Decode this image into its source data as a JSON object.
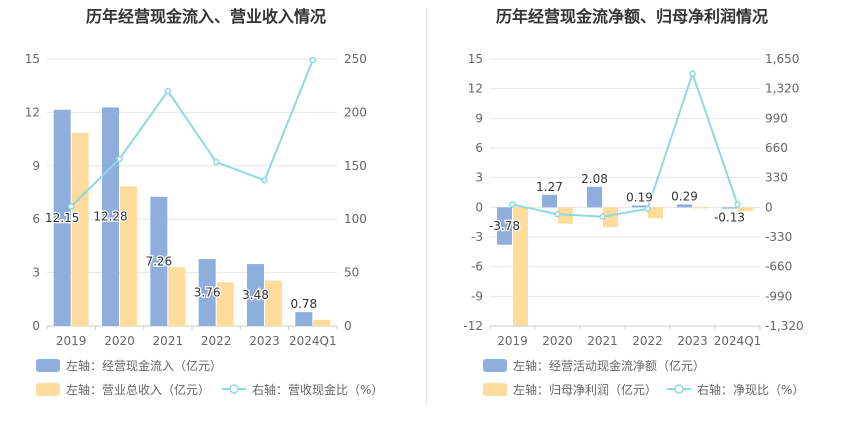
{
  "colors": {
    "bar_primary": "#8eaedd",
    "bar_secondary": "#ffdb9c",
    "line": "#8fd9e2",
    "grid": "#e6e6e6",
    "axis_text": "#666666",
    "title_text": "#333333"
  },
  "chart_data": [
    {
      "type": "bar",
      "title": "历年经营现金流入、营业收入情况",
      "categories": [
        "2019",
        "2020",
        "2021",
        "2022",
        "2023",
        "2024Q1"
      ],
      "y_left": {
        "min": 0,
        "max": 15,
        "ticks": [
          "0",
          "3",
          "6",
          "9",
          "12",
          "15"
        ]
      },
      "y_right": {
        "min": 0,
        "max": 250,
        "ticks": [
          "0",
          "50",
          "100",
          "150",
          "200",
          "250"
        ]
      },
      "series": [
        {
          "name": "左轴：经营现金流入（亿元）",
          "axis": "left",
          "kind": "bar",
          "values": [
            12.15,
            12.28,
            7.26,
            3.76,
            3.48,
            0.78
          ],
          "labels": [
            "12.15",
            "12.28",
            "7.26",
            "3.76",
            "3.48",
            "0.78"
          ]
        },
        {
          "name": "左轴：营业总收入（亿元）",
          "axis": "left",
          "kind": "bar",
          "values": [
            10.85,
            7.85,
            3.3,
            2.45,
            2.55,
            0.35
          ]
        },
        {
          "name": "右轴：营收现金比（%）",
          "axis": "right",
          "kind": "line",
          "values": [
            111.9,
            156.4,
            220.0,
            153.5,
            136.5,
            249.0
          ]
        }
      ],
      "legend": "bottom",
      "grid": true
    },
    {
      "type": "bar",
      "title": "历年经营现金流净额、归母净利润情况",
      "categories": [
        "2019",
        "2020",
        "2021",
        "2022",
        "2023",
        "2024Q1"
      ],
      "y_left": {
        "min": -12,
        "max": 15,
        "ticks": [
          "-12",
          "-9",
          "-6",
          "-3",
          "0",
          "3",
          "6",
          "9",
          "12",
          "15"
        ]
      },
      "y_right": {
        "min": -1320,
        "max": 1650,
        "ticks": [
          "-1,320",
          "-990",
          "-660",
          "-330",
          "0",
          "330",
          "660",
          "990",
          "1,320",
          "1,650"
        ]
      },
      "series": [
        {
          "name": "左轴：经营活动现金流净额（亿元）",
          "axis": "left",
          "kind": "bar",
          "values": [
            -3.78,
            1.27,
            2.08,
            0.19,
            0.29,
            -0.13
          ],
          "labels": [
            "-3.78",
            "1.27",
            "2.08",
            "0.19",
            "0.29",
            "-0.13"
          ]
        },
        {
          "name": "左轴：归母净利润（亿元）",
          "axis": "left",
          "kind": "bar",
          "values": [
            -11.95,
            -1.65,
            -2.0,
            -1.1,
            -0.05,
            -0.4
          ]
        },
        {
          "name": "右轴：净现比（%）",
          "axis": "right",
          "kind": "line",
          "values": [
            32,
            -77,
            -104,
            -17,
            1487,
            33
          ]
        }
      ],
      "legend": "bottom",
      "grid": true
    }
  ]
}
